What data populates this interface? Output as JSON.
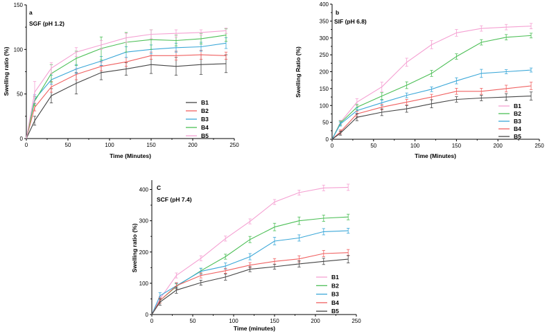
{
  "chart_data": [
    {
      "type": "line",
      "panel_label": "a",
      "title": "SGF (pH 1.2)",
      "xlabel": "Time (Minutes)",
      "ylabel": "Swelling ratio (%)",
      "xlim": [
        0,
        250
      ],
      "ylim": [
        0,
        150
      ],
      "xticks": [
        0,
        50,
        100,
        150,
        200,
        250
      ],
      "yticks": [
        0,
        50,
        100,
        150
      ],
      "x": [
        0,
        10,
        30,
        60,
        90,
        120,
        150,
        180,
        210,
        240
      ],
      "legend_position": "lower-right",
      "series": [
        {
          "name": "B1",
          "color": "#444444",
          "values": [
            0,
            20,
            48,
            62,
            74,
            78,
            83,
            81,
            83,
            84
          ],
          "errors": [
            0,
            5,
            8,
            12,
            8,
            7,
            10,
            10,
            11,
            10
          ]
        },
        {
          "name": "B2",
          "color": "#f06060",
          "values": [
            0,
            35,
            58,
            72,
            81,
            86,
            93,
            93,
            94,
            93
          ],
          "errors": [
            0,
            4,
            6,
            6,
            5,
            5,
            4,
            5,
            5,
            4
          ]
        },
        {
          "name": "B3",
          "color": "#3aa7d8",
          "values": [
            0,
            44,
            66,
            78,
            87,
            97,
            100,
            102,
            103,
            107
          ],
          "errors": [
            0,
            5,
            5,
            5,
            5,
            6,
            5,
            5,
            5,
            6
          ]
        },
        {
          "name": "B4",
          "color": "#4cbf56",
          "values": [
            0,
            42,
            73,
            90,
            101,
            108,
            111,
            110,
            112,
            116
          ],
          "errors": [
            0,
            5,
            10,
            8,
            13,
            11,
            11,
            6,
            6,
            7
          ]
        },
        {
          "name": "B5",
          "color": "#f5a0d2",
          "values": [
            0,
            52,
            79,
            97,
            105,
            113,
            117,
            118,
            119,
            121
          ],
          "errors": [
            0,
            12,
            6,
            5,
            5,
            5,
            5,
            4,
            3,
            3
          ]
        }
      ]
    },
    {
      "type": "line",
      "panel_label": "b",
      "title": "SIF (pH 6.8)",
      "xlabel": "Time (Minutes)",
      "ylabel": "Swelling Ratio (%)",
      "xlim": [
        0,
        250
      ],
      "ylim": [
        0,
        400
      ],
      "xticks": [
        0,
        50,
        100,
        150,
        200,
        250
      ],
      "yticks": [
        0,
        50,
        100,
        150,
        200,
        250,
        300,
        350,
        400
      ],
      "x": [
        0,
        10,
        30,
        60,
        90,
        120,
        150,
        180,
        210,
        240
      ],
      "legend_position": "lower-right",
      "series": [
        {
          "name": "B1",
          "color": "#f5a0d2",
          "values": [
            0,
            50,
            110,
            155,
            228,
            280,
            315,
            328,
            332,
            335
          ],
          "errors": [
            0,
            6,
            10,
            14,
            12,
            12,
            10,
            8,
            8,
            8
          ]
        },
        {
          "name": "B2",
          "color": "#4cbf56",
          "values": [
            0,
            48,
            95,
            128,
            160,
            195,
            245,
            287,
            302,
            307
          ],
          "errors": [
            0,
            6,
            8,
            10,
            10,
            9,
            8,
            8,
            8,
            7
          ]
        },
        {
          "name": "B3",
          "color": "#3aa7d8",
          "values": [
            0,
            45,
            85,
            108,
            130,
            148,
            173,
            195,
            200,
            205
          ],
          "errors": [
            0,
            6,
            8,
            8,
            7,
            7,
            9,
            12,
            6,
            6
          ]
        },
        {
          "name": "B4",
          "color": "#f06060",
          "values": [
            0,
            22,
            75,
            95,
            110,
            125,
            142,
            142,
            150,
            158
          ],
          "errors": [
            0,
            6,
            8,
            8,
            8,
            8,
            9,
            9,
            10,
            11
          ]
        },
        {
          "name": "B5",
          "color": "#444444",
          "values": [
            0,
            18,
            65,
            80,
            90,
            105,
            118,
            122,
            125,
            128
          ],
          "errors": [
            0,
            6,
            10,
            10,
            10,
            12,
            8,
            8,
            10,
            12
          ]
        }
      ]
    },
    {
      "type": "line",
      "panel_label": "C",
      "title": "SCF (pH 7.4)",
      "xlabel": "Time (minutes)",
      "ylabel": "Swelling ratio (%)",
      "xlim": [
        0,
        250
      ],
      "ylim": [
        0,
        430
      ],
      "xticks": [
        0,
        50,
        100,
        150,
        200,
        250
      ],
      "yticks": [
        0,
        100,
        200,
        300,
        400
      ],
      "x": [
        0,
        10,
        30,
        60,
        90,
        120,
        150,
        180,
        210,
        240
      ],
      "legend_position": "lower-right",
      "series": [
        {
          "name": "B1",
          "color": "#f5a0d2",
          "values": [
            0,
            50,
            125,
            180,
            243,
            298,
            360,
            390,
            405,
            407
          ],
          "errors": [
            0,
            8,
            8,
            8,
            8,
            8,
            8,
            8,
            9,
            10
          ]
        },
        {
          "name": "B2",
          "color": "#4cbf56",
          "values": [
            0,
            45,
            90,
            140,
            185,
            240,
            280,
            300,
            308,
            312
          ],
          "errors": [
            0,
            8,
            8,
            8,
            8,
            10,
            12,
            12,
            10,
            9
          ]
        },
        {
          "name": "B3",
          "color": "#3aa7d8",
          "values": [
            0,
            60,
            92,
            138,
            155,
            185,
            235,
            245,
            265,
            268
          ],
          "errors": [
            0,
            10,
            8,
            10,
            10,
            10,
            12,
            10,
            10,
            8
          ]
        },
        {
          "name": "B4",
          "color": "#f06060",
          "values": [
            0,
            45,
            92,
            125,
            140,
            158,
            170,
            178,
            195,
            198
          ],
          "errors": [
            0,
            8,
            10,
            8,
            8,
            8,
            9,
            10,
            10,
            10
          ]
        },
        {
          "name": "B5",
          "color": "#444444",
          "values": [
            0,
            40,
            78,
            102,
            120,
            145,
            153,
            162,
            170,
            177
          ],
          "errors": [
            0,
            10,
            10,
            8,
            10,
            8,
            8,
            10,
            10,
            12
          ]
        }
      ]
    }
  ]
}
